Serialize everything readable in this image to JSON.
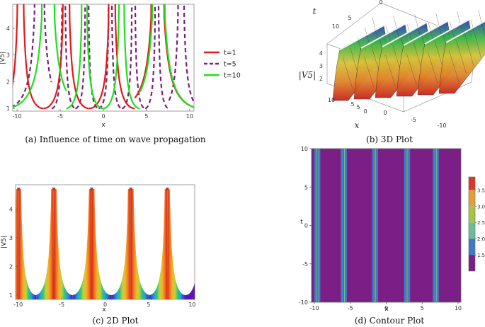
{
  "chart_data": [
    {
      "id": "a",
      "type": "line",
      "caption": "(a) Influence of time on wave propagation",
      "xlabel": "x",
      "ylabel": "|V5|",
      "xlim": [
        -10.5,
        10.5
      ],
      "ylim": [
        0.9,
        4.9
      ],
      "xticks": [
        -10,
        -5,
        0,
        5,
        10
      ],
      "yticks": [
        1,
        2,
        3,
        4
      ],
      "series": [
        {
          "name": "t=1",
          "color": "#e3191c",
          "style": "solid",
          "spikes": [
            -9.6,
            -4.3,
            1.0,
            6.3
          ]
        },
        {
          "name": "t=5",
          "color": "#7b1f7b",
          "style": "dashed",
          "spikes": [
            -7.4,
            -4.6,
            -1.9,
            0.8,
            3.5,
            6.2,
            9.0
          ]
        },
        {
          "name": "t=10",
          "color": "#1ee01e",
          "style": "solid",
          "spikes": [
            -6.4,
            -2.2,
            2.1,
            6.4
          ]
        }
      ]
    },
    {
      "id": "b",
      "type": "surface3d",
      "caption": "(b) 3D Plot",
      "xlabel": "x",
      "ylabel": "t",
      "zlabel": "|V5|",
      "x_ticks": [
        "5",
        "0",
        "-5",
        "-10"
      ],
      "t_ticks": [
        "10",
        "5",
        "0"
      ],
      "t_ticks_top": [
        "10",
        "5",
        "0"
      ],
      "z_ticks": [
        "4",
        "3",
        "2"
      ]
    },
    {
      "id": "c",
      "type": "area",
      "caption": "(c) 2D Plot",
      "xlabel": "x",
      "ylabel": "|V5|",
      "xlim": [
        -10.3,
        10.3
      ],
      "ylim": [
        0.85,
        4.85
      ],
      "xticks": [
        -10,
        -5,
        0,
        5,
        10
      ],
      "yticks": [
        1,
        2,
        3,
        4
      ],
      "spikes": [
        -9.95,
        -5.9,
        -1.55,
        2.95,
        7.15
      ],
      "colormap": [
        "#5a16b0",
        "#2a5bd6",
        "#21a8c9",
        "#37c27a",
        "#b8d43a",
        "#f0b62d",
        "#ef7a20",
        "#d8211c"
      ]
    },
    {
      "id": "d",
      "type": "heatmap",
      "caption": "(d) Contour Plot",
      "xlabel": "x",
      "ylabel": "t",
      "xlim": [
        -10.4,
        10.4
      ],
      "ylim": [
        -10,
        10
      ],
      "xticks": [
        -10,
        -5,
        0,
        5,
        10
      ],
      "yticks": [
        -10,
        -5,
        0,
        5,
        10
      ],
      "boundaries": [
        -9.6,
        -5.9,
        -1.55,
        2.9,
        6.9
      ],
      "colorbar_ticks": [
        1.5,
        2.0,
        2.5,
        3.0,
        3.5
      ],
      "colorbar_range": [
        1.0,
        3.9
      ],
      "colorbar_colors": [
        "#7b1f86",
        "#3f7bc5",
        "#6dbd9a",
        "#a6c447",
        "#e0a03a",
        "#e0362a"
      ]
    }
  ]
}
